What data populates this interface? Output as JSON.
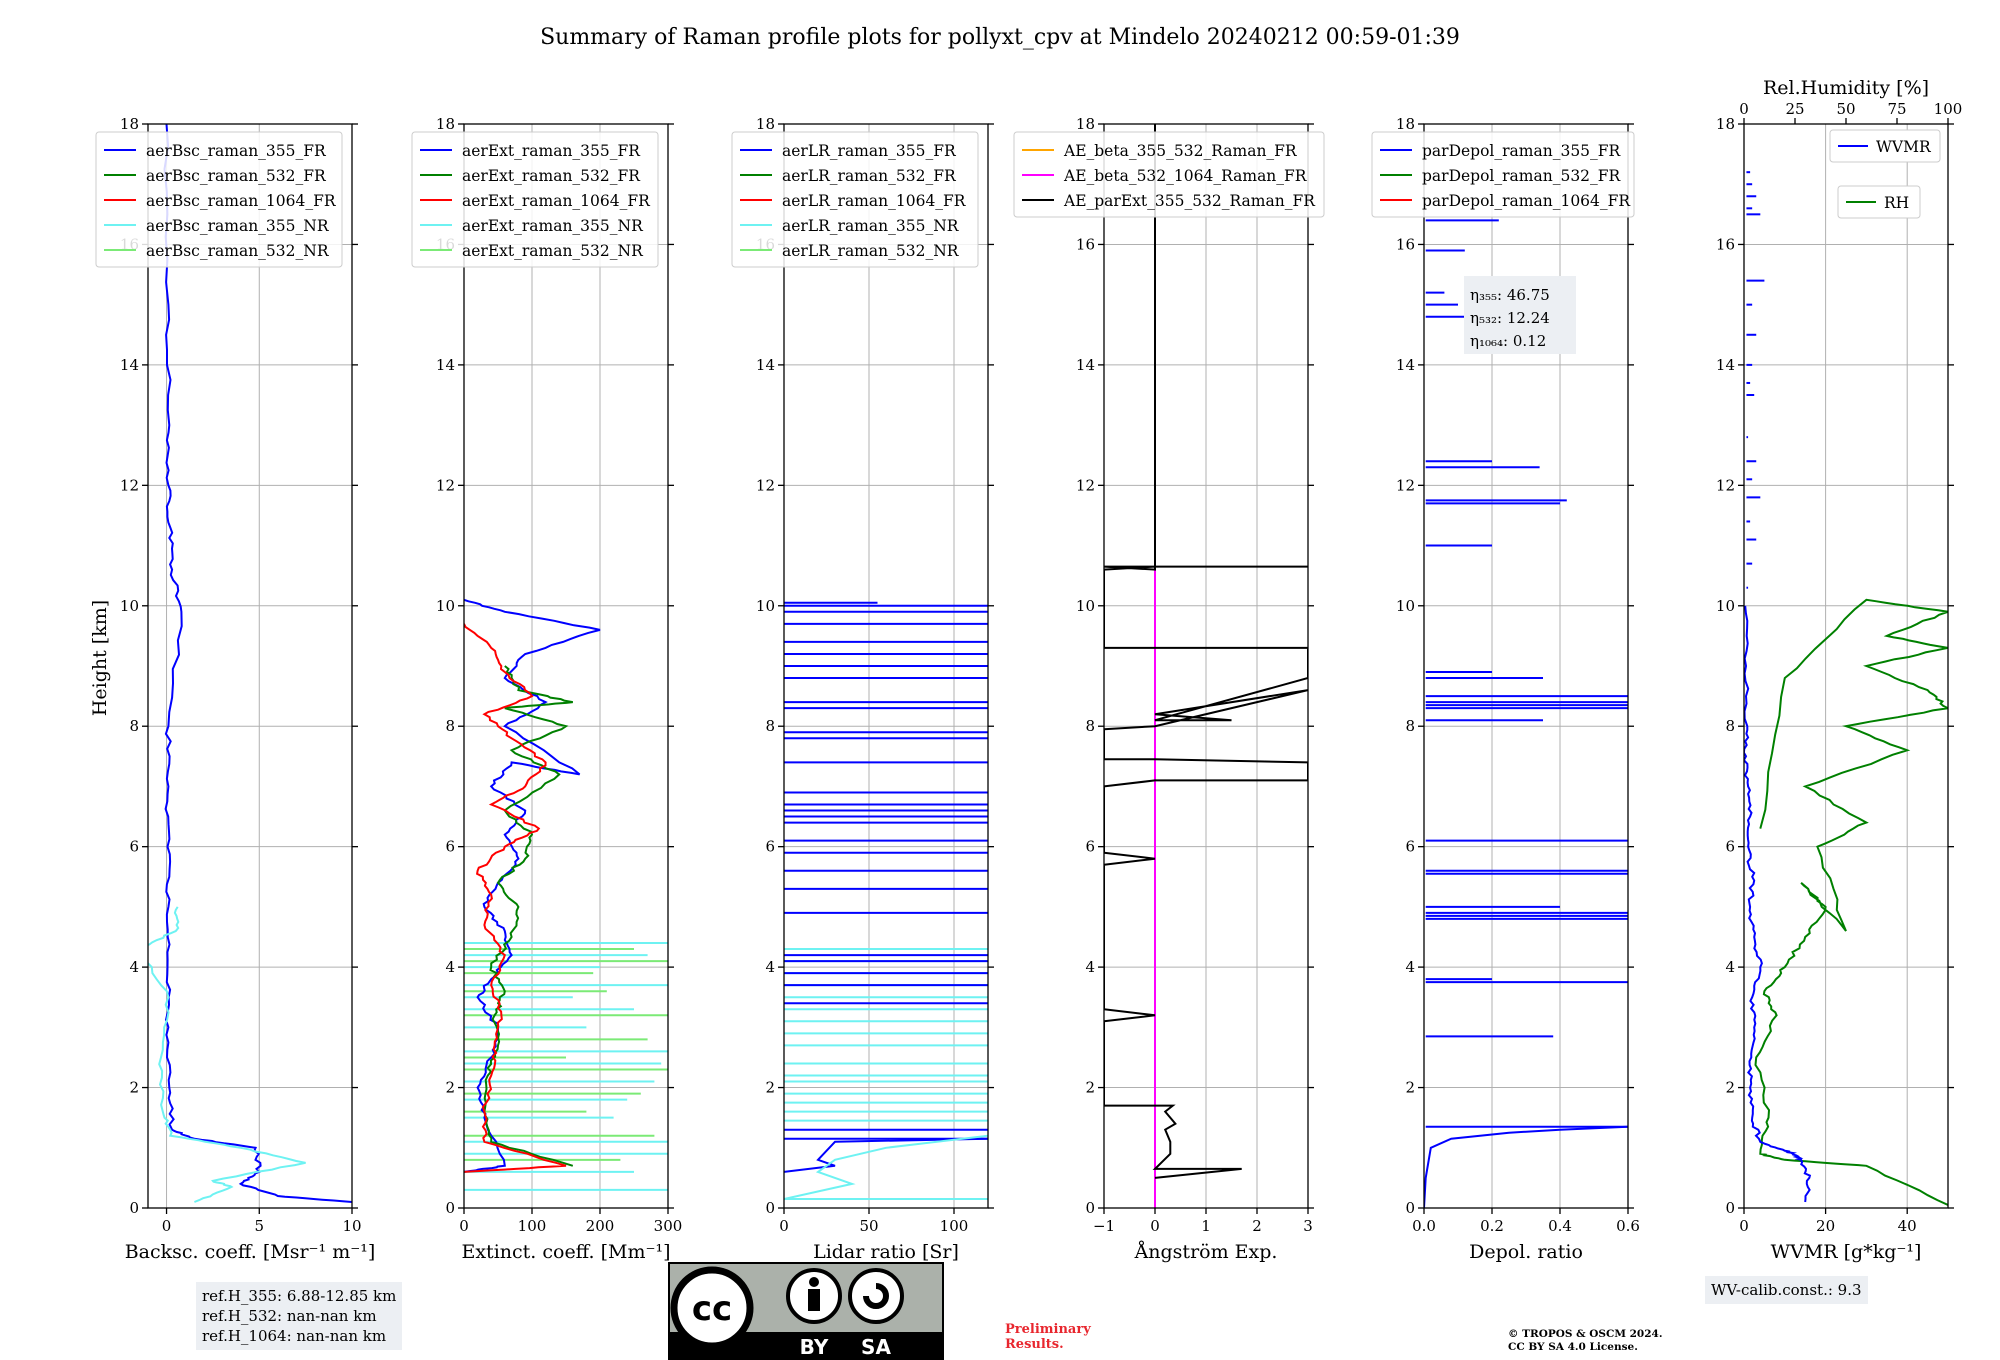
{
  "title": "Summary of Raman profile plots for pollyxt_cpv at Mindelo 20240212 00:59-01:39",
  "shared_ylabel": "Height [km]",
  "chart_data": [
    {
      "id": "bsc",
      "type": "line",
      "xlabel": "Backsc. coeff. [Msr⁻¹ m⁻¹]",
      "xlim": [
        -1,
        10
      ],
      "ylim": [
        0,
        18
      ],
      "xticks": [
        0,
        5,
        10
      ],
      "yticks": [
        0,
        2,
        4,
        6,
        8,
        10,
        12,
        14,
        16,
        18
      ],
      "legend": [
        "aerBsc_raman_355_FR",
        "aerBsc_raman_532_FR",
        "aerBsc_raman_1064_FR",
        "aerBsc_raman_355_NR",
        "aerBsc_raman_532_NR"
      ],
      "series": [
        {
          "name": "aerBsc_raman_355_FR",
          "color": "#0000ff",
          "style": "jitter",
          "x": [
            10,
            6,
            4,
            5,
            4.8,
            1.5,
            0.3,
            0.15,
            0.1,
            0.05,
            0.1,
            0.05,
            0.1,
            0.1,
            0.8,
            0.3,
            0.2,
            0.1,
            0.15,
            0.1,
            0.0
          ],
          "y": [
            0.1,
            0.2,
            0.4,
            0.6,
            1.0,
            1.15,
            1.3,
            2,
            3,
            4,
            5,
            6,
            7,
            8,
            9.9,
            10.6,
            11.3,
            12,
            13,
            15,
            18
          ]
        },
        {
          "name": "aerBsc_raman_355_NR",
          "color": "#6ef2f2",
          "style": "jitter",
          "x": [
            1.5,
            3.5,
            2.5,
            7.5,
            4,
            0.2,
            -0.2,
            -0.3,
            0.1,
            -1.5,
            0.5,
            0.6
          ],
          "y": [
            0.1,
            0.35,
            0.45,
            0.75,
            1.0,
            1.2,
            1.6,
            2.5,
            3.5,
            4.3,
            4.6,
            5.0
          ]
        }
      ]
    },
    {
      "id": "ext",
      "type": "line",
      "xlabel": "Extinct. coeff. [Mm⁻¹]",
      "xlim": [
        0,
        300
      ],
      "ylim": [
        0,
        18
      ],
      "xticks": [
        0,
        100,
        200,
        300
      ],
      "yticks": [
        0,
        2,
        4,
        6,
        8,
        10,
        12,
        14,
        16,
        18
      ],
      "legend": [
        "aerExt_raman_355_FR",
        "aerExt_raman_532_FR",
        "aerExt_raman_1064_FR",
        "aerExt_raman_355_NR",
        "aerExt_raman_532_NR"
      ],
      "series": [
        {
          "name": "aerExt_raman_355_NR",
          "color": "#6ef2f2",
          "style": "hlines",
          "x": [
            300,
            250,
            300,
            220,
            280,
            300,
            180,
            250,
            300,
            200,
            270,
            300,
            160,
            290,
            300,
            240
          ],
          "y": [
            0.3,
            0.6,
            0.9,
            1.5,
            2.1,
            2.6,
            3.0,
            3.3,
            3.7,
            4.0,
            4.2,
            4.4,
            3.5,
            2.4,
            1.1,
            1.8
          ]
        },
        {
          "name": "aerExt_raman_532_NR",
          "color": "#7bea76",
          "style": "hlines",
          "x": [
            230,
            280,
            180,
            260,
            300,
            150,
            270,
            300,
            210,
            190,
            300,
            250
          ],
          "y": [
            0.8,
            1.2,
            1.6,
            1.9,
            2.3,
            2.5,
            2.8,
            3.2,
            3.6,
            3.9,
            4.1,
            4.3
          ]
        },
        {
          "name": "aerExt_raman_355_FR",
          "color": "#0000ff",
          "style": "jitter",
          "x": [
            0,
            60,
            30,
            20,
            40,
            50,
            20,
            40,
            70,
            60,
            30,
            50,
            80,
            60,
            90,
            40,
            70,
            170,
            60,
            120,
            60,
            90,
            200,
            60,
            0
          ],
          "y": [
            0.6,
            0.7,
            1.5,
            2.0,
            2.5,
            3.0,
            3.5,
            3.8,
            4.2,
            4.6,
            5.0,
            5.4,
            5.8,
            6.2,
            6.6,
            7.0,
            7.4,
            7.2,
            8.0,
            8.4,
            8.8,
            9.2,
            9.6,
            9.9,
            10.1
          ]
        },
        {
          "name": "aerExt_raman_532_FR",
          "color": "#008000",
          "style": "jitter",
          "x": [
            160,
            40,
            30,
            35,
            50,
            45,
            60,
            40,
            70,
            80,
            50,
            90,
            100,
            60,
            140,
            70,
            150,
            60,
            160,
            80,
            60
          ],
          "y": [
            0.7,
            1.1,
            1.6,
            2.2,
            2.7,
            3.2,
            3.6,
            4.0,
            4.5,
            5.0,
            5.4,
            5.8,
            6.2,
            6.6,
            7.2,
            7.6,
            8.0,
            8.3,
            8.4,
            8.6,
            9.0
          ]
        },
        {
          "name": "aerExt_raman_1064_FR",
          "color": "#ff0000",
          "style": "jitter",
          "x": [
            0,
            150,
            30,
            30,
            40,
            45,
            55,
            40,
            60,
            30,
            40,
            20,
            60,
            110,
            40,
            90,
            120,
            70,
            30,
            100,
            60,
            40,
            0
          ],
          "y": [
            0.6,
            0.7,
            1.1,
            1.6,
            2.2,
            2.7,
            3.2,
            3.7,
            4.2,
            4.7,
            5.2,
            5.6,
            6.0,
            6.3,
            6.7,
            7.0,
            7.4,
            7.8,
            8.2,
            8.5,
            8.9,
            9.3,
            9.7
          ]
        }
      ]
    },
    {
      "id": "lr",
      "type": "line",
      "xlabel": "Lidar ratio [Sr]",
      "xlim": [
        0,
        120
      ],
      "ylim": [
        0,
        18
      ],
      "xticks": [
        0,
        50,
        100
      ],
      "yticks": [
        0,
        2,
        4,
        6,
        8,
        10,
        12,
        14,
        16,
        18
      ],
      "legend": [
        "aerLR_raman_355_FR",
        "aerLR_raman_532_FR",
        "aerLR_raman_1064_FR",
        "aerLR_raman_355_NR",
        "aerLR_raman_532_NR"
      ],
      "series": [
        {
          "name": "aerLR_raman_355_NR",
          "color": "#6ef2f2",
          "style": "hlines",
          "x": [
            120,
            120,
            120,
            120,
            120,
            120,
            120,
            120,
            120,
            120,
            120,
            120,
            120,
            120,
            120,
            120,
            120
          ],
          "y": [
            0.15,
            1.6,
            1.75,
            1.9,
            2.1,
            2.2,
            2.4,
            2.7,
            2.9,
            3.1,
            3.3,
            3.5,
            3.7,
            3.9,
            4.1,
            4.3,
            1.45
          ]
        },
        {
          "name": "aerLR_raman_355_FR",
          "color": "#0000ff",
          "style": "hlines",
          "x": [
            120,
            120,
            120,
            120,
            120,
            120,
            120,
            120,
            120,
            120,
            120,
            120,
            120,
            120,
            120,
            120,
            120,
            120,
            120,
            120,
            120,
            120,
            120,
            120,
            120,
            120,
            120,
            120,
            120,
            55
          ],
          "y": [
            1.15,
            1.3,
            3.4,
            3.7,
            3.9,
            4.1,
            4.2,
            4.9,
            5.3,
            5.6,
            5.9,
            6.1,
            6.4,
            6.5,
            6.7,
            6.9,
            7.4,
            7.8,
            7.9,
            8.3,
            8.4,
            8.8,
            9.0,
            9.2,
            9.4,
            9.7,
            9.9,
            10.0,
            6.6,
            10.05
          ]
        },
        {
          "name": "aerLR_raman_355_FR_profile",
          "color": "#0000ff",
          "style": "curve",
          "x": [
            0,
            30,
            20,
            30,
            120
          ],
          "y": [
            0.6,
            0.7,
            0.8,
            1.1,
            1.15
          ]
        },
        {
          "name": "aerLR_raman_355_NR_profile",
          "color": "#6ef2f2",
          "style": "curve",
          "x": [
            0,
            40,
            20,
            30,
            60,
            120
          ],
          "y": [
            0.15,
            0.4,
            0.6,
            0.8,
            1.0,
            1.2
          ]
        }
      ]
    },
    {
      "id": "ae",
      "type": "line",
      "xlabel": "Ångström Exp.",
      "xlim": [
        -1,
        3
      ],
      "ylim": [
        0,
        18
      ],
      "xticks": [
        -1,
        0,
        1,
        2,
        3
      ],
      "yticks": [
        0,
        2,
        4,
        6,
        8,
        10,
        12,
        14,
        16,
        18
      ],
      "legend": [
        "AE_beta_355_532_Raman_FR",
        "AE_beta_532_1064_Raman_FR",
        "AE_parExt_355_532_Raman_FR"
      ],
      "series": [
        {
          "name": "AE_beta_532_1064_Raman_FR",
          "color": "#ff00ff",
          "style": "curve",
          "x": [
            0,
            0
          ],
          "y": [
            0,
            10.6
          ]
        },
        {
          "name": "AE_parExt_355_532_Raman_FR",
          "color": "#000000",
          "style": "curve",
          "x": [
            0,
            1.7,
            0,
            0.3,
            0.3,
            0.2,
            0.4,
            0.2,
            0.35,
            -1,
            -1,
            0,
            -1,
            -1,
            0,
            -1,
            -1,
            0,
            3,
            3,
            0,
            -1,
            -1,
            0,
            3,
            3,
            0,
            1.5,
            0,
            3,
            3,
            0,
            0,
            -1,
            -1,
            0,
            3,
            -1,
            0,
            0,
            0
          ],
          "y": [
            0.5,
            0.65,
            0.65,
            0.9,
            1.1,
            1.3,
            1.4,
            1.6,
            1.7,
            1.7,
            3.1,
            3.2,
            3.3,
            5.7,
            5.8,
            5.9,
            7.0,
            7.1,
            7.1,
            7.4,
            7.45,
            7.45,
            7.95,
            8.0,
            8.6,
            8.6,
            8.2,
            8.1,
            8.1,
            8.8,
            9.3,
            9.3,
            9.3,
            9.3,
            10.6,
            10.65,
            10.65,
            10.65,
            10.6,
            16.5,
            18
          ]
        }
      ]
    },
    {
      "id": "depol",
      "type": "line",
      "xlabel": "Depol. ratio",
      "xlim": [
        0,
        0.6
      ],
      "ylim": [
        0,
        18
      ],
      "xticks": [
        0,
        0.2,
        0.4,
        0.6
      ],
      "yticks": [
        0,
        2,
        4,
        6,
        8,
        10,
        12,
        14,
        16,
        18
      ],
      "legend": [
        "parDepol_raman_355_FR",
        "parDepol_raman_532_FR",
        "parDepol_raman_1064_FR"
      ],
      "annotations": [
        "η₃₅₅: 46.75",
        "η₅₃₂: 12.24",
        "η₁₀₆₄: 0.12"
      ],
      "series": [
        {
          "name": "parDepol_raman_355_FR",
          "color": "#0000ff",
          "style": "spikes",
          "x": [
            0.6,
            0.38,
            0.2,
            0.6,
            0.6,
            0.6,
            0.6,
            0.4,
            0.6,
            0.6,
            0.6,
            0.35,
            0.2,
            0.6,
            0.6,
            0.6,
            0.6,
            0.35,
            0.4,
            0.2,
            0.42,
            0.34,
            0.2,
            0.12,
            0.1,
            0.06,
            0.12,
            0.22
          ],
          "y": [
            1.35,
            2.85,
            3.8,
            3.75,
            4.8,
            4.85,
            4.9,
            5.0,
            5.55,
            5.6,
            6.1,
            8.1,
            8.9,
            8.3,
            8.35,
            8.4,
            8.5,
            8.8,
            11.7,
            11.0,
            11.75,
            12.3,
            12.4,
            14.8,
            15.0,
            15.2,
            15.9,
            16.4
          ]
        },
        {
          "name": "parDepol_raman_355_FR_profile",
          "color": "#0000ff",
          "style": "curve",
          "x": [
            0,
            0.005,
            0.02,
            0.08,
            0.25,
            0.4,
            0.6
          ],
          "y": [
            0,
            0.5,
            1.0,
            1.15,
            1.25,
            1.3,
            1.35
          ]
        }
      ]
    },
    {
      "id": "wv",
      "type": "line",
      "xlabel": "WVMR [g*kg⁻¹]",
      "x2label": "Rel.Humidity [%]",
      "xlim": [
        0,
        50
      ],
      "x2lim": [
        0,
        100
      ],
      "ylim": [
        0,
        18
      ],
      "xticks": [
        0,
        20,
        40
      ],
      "x2ticks": [
        0,
        25,
        50,
        75,
        100
      ],
      "yticks": [
        0,
        2,
        4,
        6,
        8,
        10,
        12,
        14,
        16,
        18
      ],
      "legend": [
        "WVMR",
        "RH"
      ],
      "series": [
        {
          "name": "RH",
          "color": "#008000",
          "style": "jitter",
          "x": [
            50,
            30,
            10,
            4,
            6,
            3,
            8,
            5,
            10,
            15,
            20,
            14,
            25,
            18,
            30,
            15,
            40,
            25,
            50,
            45,
            30,
            50,
            35,
            50,
            30,
            10,
            4
          ],
          "y": [
            0.05,
            0.7,
            0.8,
            0.9,
            1.5,
            2.5,
            3.2,
            3.6,
            4.0,
            4.5,
            5.0,
            5.4,
            4.6,
            6.0,
            6.4,
            7.0,
            7.6,
            8.0,
            8.3,
            8.6,
            9.0,
            9.3,
            9.5,
            9.9,
            10.1,
            8.8,
            6.3
          ]
        },
        {
          "name": "WVMR",
          "color": "#0000ff",
          "style": "jitter",
          "x": [
            15,
            16,
            14,
            12,
            10,
            4,
            2,
            1.5,
            1.8,
            2.5,
            2.0,
            4.0,
            2.5,
            1.5,
            2.0,
            1.0,
            1.5,
            1.0,
            0.5,
            0.8,
            0.5,
            0.3
          ],
          "y": [
            0.1,
            0.5,
            0.8,
            0.9,
            0.95,
            1.1,
            1.5,
            2.0,
            2.5,
            3.0,
            3.5,
            4.0,
            4.5,
            5.0,
            5.5,
            6.0,
            6.5,
            7.0,
            7.5,
            8.0,
            9.0,
            10.0
          ]
        },
        {
          "name": "WVMR_upper",
          "color": "#0000ff",
          "style": "hlines",
          "x": [
            1,
            2,
            3,
            1.5,
            4,
            2,
            3,
            1,
            2.5,
            5,
            4,
            2,
            3,
            1.5,
            2,
            3,
            2,
            1.5,
            2
          ],
          "y": [
            10.3,
            10.7,
            11.1,
            11.4,
            11.8,
            12.1,
            12.4,
            12.8,
            13.5,
            15.4,
            16.5,
            16.6,
            16.8,
            17.2,
            15.0,
            14.5,
            14.0,
            13.7,
            17.0
          ]
        }
      ]
    }
  ],
  "notes": {
    "ref_h": [
      "ref.H_355: 6.88-12.85 km",
      "ref.H_532: nan-nan km",
      "ref.H_1064: nan-nan km"
    ],
    "wv_calib": "WV-calib.const.: 9.3",
    "preliminary": [
      "Preliminary",
      "Results."
    ],
    "copyright": [
      "© TROPOS & OSCM 2024.",
      "CC BY SA 4.0 License."
    ],
    "cc_labels": [
      "cc",
      "BY",
      "SA"
    ]
  }
}
